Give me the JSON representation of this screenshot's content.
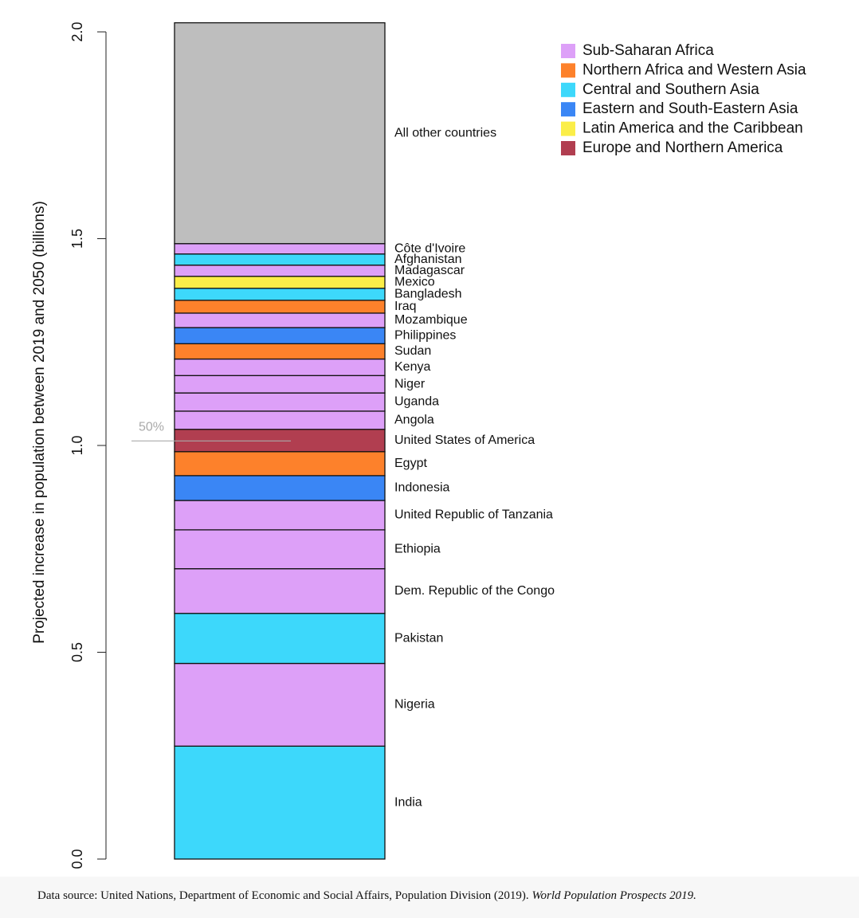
{
  "chart_data": {
    "type": "stacked_bar",
    "y_label": "Projected increase in population between 2019 and 2050 (billions)",
    "ylim": [
      0,
      2
    ],
    "yticks": [
      {
        "value": 0,
        "label": "0.0"
      },
      0.5,
      {
        "value": 1,
        "label": "1.0"
      },
      1.5,
      {
        "value": 2,
        "label": "2.0"
      }
    ],
    "segments": [
      {
        "label": "India",
        "value": 0.273,
        "color": "#3dd8fb"
      },
      {
        "label": "Nigeria",
        "value": 0.2,
        "color": "#dda0f8"
      },
      {
        "label": "Pakistan",
        "value": 0.121,
        "color": "#3dd8fb"
      },
      {
        "label": "Dem. Republic of the Congo",
        "value": 0.108,
        "color": "#dda0f8"
      },
      {
        "label": "Ethiopia",
        "value": 0.094,
        "color": "#dda0f8"
      },
      {
        "label": "United Republic of Tanzania",
        "value": 0.071,
        "color": "#dda0f8"
      },
      {
        "label": "Indonesia",
        "value": 0.06,
        "color": "#3a86f5"
      },
      {
        "label": "Egypt",
        "value": 0.058,
        "color": "#fd812b"
      },
      {
        "label": "United States of America",
        "value": 0.054,
        "color": "#b13e50"
      },
      {
        "label": "Angola",
        "value": 0.044,
        "color": "#dda0f8"
      },
      {
        "label": "Uganda",
        "value": 0.044,
        "color": "#dda0f8"
      },
      {
        "label": "Niger",
        "value": 0.042,
        "color": "#dda0f8"
      },
      {
        "label": "Kenya",
        "value": 0.04,
        "color": "#dda0f8"
      },
      {
        "label": "Sudan",
        "value": 0.037,
        "color": "#fd812b"
      },
      {
        "label": "Philippines",
        "value": 0.039,
        "color": "#3a86f5"
      },
      {
        "label": "Mozambique",
        "value": 0.035,
        "color": "#dda0f8"
      },
      {
        "label": "Iraq",
        "value": 0.031,
        "color": "#fd812b"
      },
      {
        "label": "Bangladesh",
        "value": 0.029,
        "color": "#3dd8fb"
      },
      {
        "label": "Mexico",
        "value": 0.029,
        "color": "#fbee48"
      },
      {
        "label": "Madagascar",
        "value": 0.027,
        "color": "#dda0f8"
      },
      {
        "label": "Afghanistan",
        "value": 0.027,
        "color": "#3dd8fb"
      },
      {
        "label": "Côte d'Ivoire",
        "value": 0.025,
        "color": "#dda0f8"
      },
      {
        "label": "All other countries",
        "value": 0.534,
        "color": "#bebebe"
      }
    ],
    "legend": [
      {
        "name": "Sub-Saharan Africa",
        "color": "#dda0f8"
      },
      {
        "name": "Northern Africa and Western Asia",
        "color": "#fd812b"
      },
      {
        "name": "Central and Southern Asia",
        "color": "#3dd8fb"
      },
      {
        "name": "Eastern and South-Eastern Asia",
        "color": "#3a86f5"
      },
      {
        "name": "Latin America and the Caribbean",
        "color": "#fbee48"
      },
      {
        "name": "Europe and Northern America",
        "color": "#b13e50"
      }
    ],
    "annotation": {
      "label": "50%",
      "value": 1.011
    },
    "source": "Data source: United Nations, Department of Economic and Social Affairs, Population Division (2019).",
    "source_title": "World Population Prospects 2019."
  }
}
